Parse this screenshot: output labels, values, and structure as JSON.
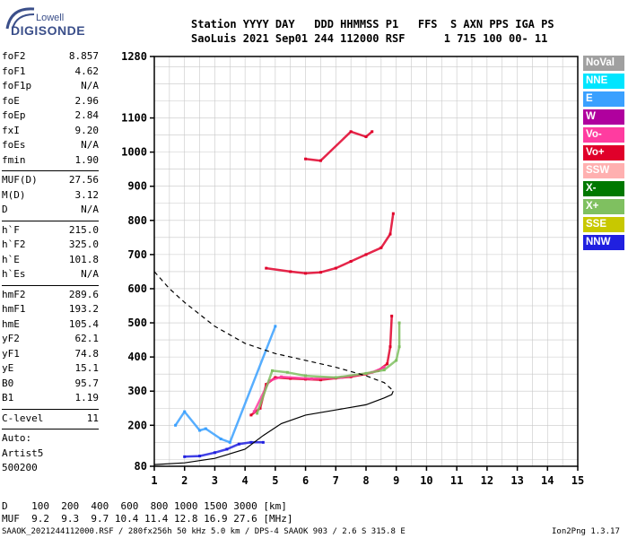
{
  "logo": {
    "line1": "Lowell",
    "line2": "DIGISONDE"
  },
  "header": {
    "line1": "Station YYYY DAY   DDD HHMMSS P1   FFS  S AXN PPS IGA PS",
    "line2": "SaoLuis 2021 Sep01 244 112000 RSF      1 715 100 00- 11"
  },
  "params": {
    "group1": [
      {
        "label": "foF2",
        "value": "8.857"
      },
      {
        "label": "foF1",
        "value": "4.62"
      },
      {
        "label": "foF1p",
        "value": "N/A"
      },
      {
        "label": "foE",
        "value": "2.96"
      },
      {
        "label": "foEp",
        "value": "2.84"
      },
      {
        "label": "fxI",
        "value": "9.20"
      },
      {
        "label": "foEs",
        "value": "N/A"
      },
      {
        "label": "fmin",
        "value": "1.90"
      }
    ],
    "group2": [
      {
        "label": "MUF(D)",
        "value": "27.56"
      },
      {
        "label": "M(D)",
        "value": "3.12"
      },
      {
        "label": "D",
        "value": "N/A"
      }
    ],
    "group3": [
      {
        "label": "h`F",
        "value": "215.0"
      },
      {
        "label": "h`F2",
        "value": "325.0"
      },
      {
        "label": "h`E",
        "value": "101.8"
      },
      {
        "label": "h`Es",
        "value": "N/A"
      }
    ],
    "group4": [
      {
        "label": "hmF2",
        "value": "289.6"
      },
      {
        "label": "hmF1",
        "value": "193.2"
      },
      {
        "label": "hmE",
        "value": "105.4"
      },
      {
        "label": "yF2",
        "value": "62.1"
      },
      {
        "label": "yF1",
        "value": "74.8"
      },
      {
        "label": "yE",
        "value": "15.1"
      },
      {
        "label": "B0",
        "value": "95.7"
      },
      {
        "label": "B1",
        "value": "1.19"
      }
    ],
    "group5": [
      {
        "label": "C-level",
        "value": "11"
      }
    ]
  },
  "autoscale": {
    "line1": "Auto:",
    "line2": "Artist5",
    "line3": "500200"
  },
  "legend": [
    {
      "label": "NoVal",
      "color": "#a0a0a0"
    },
    {
      "label": "NNE",
      "color": "#00e5ff"
    },
    {
      "label": "E",
      "color": "#3aa0ff"
    },
    {
      "label": "W",
      "color": "#b0009e"
    },
    {
      "label": "Vo-",
      "color": "#ff3ca0"
    },
    {
      "label": "Vo+",
      "color": "#e0002a"
    },
    {
      "label": "SSW",
      "color": "#ffb0b0"
    },
    {
      "label": "X-",
      "color": "#007800"
    },
    {
      "label": "X+",
      "color": "#7fc060"
    },
    {
      "label": "SSE",
      "color": "#c8c800"
    },
    {
      "label": "NNW",
      "color": "#2020e0"
    }
  ],
  "bottom": {
    "d_row": "D    100  200  400  600  800 1000 1500 3000 [km]",
    "muf_row": "MUF  9.2  9.3  9.7 10.4 11.4 12.8 16.9 27.6 [MHz]",
    "footer": "SAAOK_2021244112000.RSF / 280fx256h 50 kHz 5.0 km / DPS-4 SAAOK 903 / 2.6 S 315.8 E",
    "version": "Ion2Png 1.3.17"
  },
  "chart_data": {
    "type": "scatter",
    "xlim": [
      1,
      15
    ],
    "ylim": [
      80,
      1280
    ],
    "x_ticks": [
      1,
      2,
      3,
      4,
      5,
      6,
      7,
      8,
      9,
      10,
      11,
      12,
      13,
      14,
      15
    ],
    "y_ticks": [
      80,
      200,
      300,
      400,
      500,
      600,
      700,
      800,
      900,
      1000,
      1100,
      1280
    ],
    "grid": true,
    "series": [
      {
        "name": "O-trace (Vo+)",
        "color": "#e0002a",
        "points": [
          [
            4.2,
            230
          ],
          [
            4.5,
            250
          ],
          [
            4.7,
            320
          ],
          [
            5.0,
            340
          ],
          [
            5.5,
            337
          ],
          [
            6.0,
            335
          ],
          [
            6.5,
            333
          ],
          [
            7.0,
            338
          ],
          [
            7.5,
            342
          ],
          [
            8.0,
            350
          ],
          [
            8.4,
            360
          ],
          [
            8.7,
            380
          ],
          [
            8.8,
            430
          ],
          [
            8.85,
            520
          ]
        ]
      },
      {
        "name": "O-trace (Vo-)",
        "color": "#ff3ca0",
        "points": [
          [
            4.3,
            240
          ],
          [
            4.8,
            330
          ],
          [
            5.2,
            342
          ],
          [
            6.2,
            336
          ],
          [
            7.2,
            340
          ],
          [
            8.2,
            355
          ],
          [
            8.6,
            370
          ]
        ]
      },
      {
        "name": "X-trace (X+)",
        "color": "#7fc060",
        "points": [
          [
            4.4,
            235
          ],
          [
            4.9,
            360
          ],
          [
            5.4,
            355
          ],
          [
            6.0,
            345
          ],
          [
            7.0,
            340
          ],
          [
            8.0,
            352
          ],
          [
            8.6,
            362
          ],
          [
            9.0,
            390
          ],
          [
            9.1,
            430
          ],
          [
            9.1,
            500
          ]
        ]
      },
      {
        "name": "E-region echoes (NNW)",
        "color": "#2020e0",
        "points": [
          [
            2.0,
            108
          ],
          [
            2.5,
            110
          ],
          [
            3.0,
            120
          ],
          [
            3.4,
            130
          ],
          [
            3.8,
            145
          ],
          [
            4.2,
            150
          ],
          [
            4.6,
            150
          ]
        ]
      },
      {
        "name": "F2 multihop (Vo+)",
        "color": "#e0002a",
        "points": [
          [
            4.7,
            660
          ],
          [
            5.5,
            650
          ],
          [
            6.0,
            645
          ],
          [
            6.5,
            648
          ],
          [
            7.0,
            660
          ],
          [
            7.5,
            680
          ],
          [
            8.0,
            700
          ],
          [
            8.5,
            720
          ],
          [
            8.8,
            760
          ],
          [
            8.9,
            820
          ]
        ]
      },
      {
        "name": "High altitude (Vo+)",
        "color": "#e0002a",
        "points": [
          [
            6.0,
            980
          ],
          [
            6.5,
            975
          ],
          [
            7.5,
            1060
          ],
          [
            8.0,
            1045
          ],
          [
            8.2,
            1060
          ]
        ]
      },
      {
        "name": "Oblique (E)",
        "color": "#3aa0ff",
        "points": [
          [
            1.7,
            200
          ],
          [
            2.0,
            240
          ],
          [
            2.5,
            185
          ],
          [
            2.7,
            190
          ],
          [
            3.2,
            160
          ],
          [
            3.5,
            150
          ],
          [
            5.0,
            490
          ]
        ]
      },
      {
        "name": "Profile (True height)",
        "color": "#000000",
        "points": [
          [
            1.0,
            85
          ],
          [
            2.0,
            90
          ],
          [
            3.0,
            103
          ],
          [
            4.0,
            130
          ],
          [
            4.6,
            170
          ],
          [
            5.2,
            205
          ],
          [
            6.0,
            230
          ],
          [
            7.0,
            245
          ],
          [
            8.0,
            260
          ],
          [
            8.6,
            280
          ],
          [
            8.85,
            290
          ],
          [
            8.9,
            300
          ]
        ]
      },
      {
        "name": "MUF curve (dashed)",
        "color": "#000000",
        "points": [
          [
            1.0,
            650
          ],
          [
            1.5,
            600
          ],
          [
            2.0,
            560
          ],
          [
            3.0,
            490
          ],
          [
            4.0,
            440
          ],
          [
            5.0,
            410
          ],
          [
            6.0,
            390
          ],
          [
            7.0,
            370
          ],
          [
            8.0,
            345
          ],
          [
            8.6,
            325
          ],
          [
            8.85,
            305
          ]
        ]
      }
    ]
  }
}
